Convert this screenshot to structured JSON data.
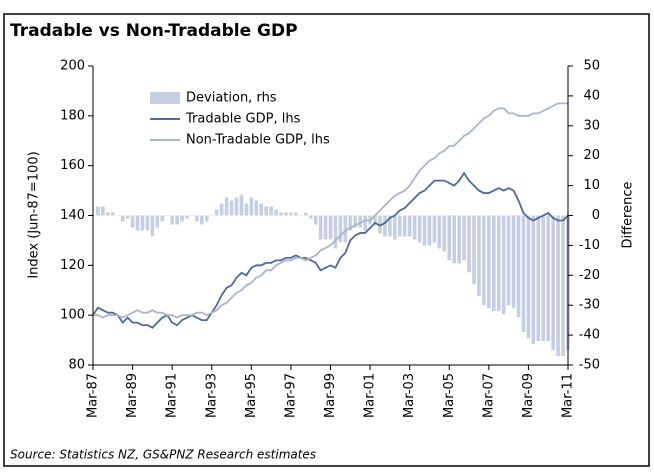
{
  "chart_data": {
    "type": "bar-line",
    "title": "Tradable vs Non-Tradable GDP",
    "ylabel": "Index (Jun-87=100)",
    "y2label": "Difference",
    "source": "Source: Statistics NZ, GS&PNZ Research estimates",
    "categories": [
      "Mar-87",
      null,
      null,
      null,
      null,
      null,
      null,
      null,
      "Mar-89",
      null,
      null,
      null,
      null,
      null,
      null,
      null,
      "Mar-91",
      null,
      null,
      null,
      null,
      null,
      null,
      null,
      "Mar-93",
      null,
      null,
      null,
      null,
      null,
      null,
      null,
      "Mar-95",
      null,
      null,
      null,
      null,
      null,
      null,
      null,
      "Mar-97",
      null,
      null,
      null,
      null,
      null,
      null,
      null,
      "Mar-99",
      null,
      null,
      null,
      null,
      null,
      null,
      null,
      "Mar-01",
      null,
      null,
      null,
      null,
      null,
      null,
      null,
      "Mar-03",
      null,
      null,
      null,
      null,
      null,
      null,
      null,
      "Mar-05",
      null,
      null,
      null,
      null,
      null,
      null,
      null,
      "Mar-07",
      null,
      null,
      null,
      null,
      null,
      null,
      null,
      "Mar-09",
      null,
      null,
      null,
      null,
      null,
      null,
      null,
      "Mar-11"
    ],
    "series": [
      {
        "name": "Deviation, rhs",
        "color": "#c6cee3",
        "axis": "y2",
        "kind": "bar",
        "values": [
          0,
          3,
          3,
          1,
          1,
          0,
          -2,
          -1,
          -4,
          -5,
          -5,
          -5,
          -7,
          -4,
          -2,
          0,
          -3,
          -3,
          -2,
          -1,
          0,
          -2,
          -3,
          -2,
          0,
          2,
          4,
          6,
          5,
          6,
          7,
          4,
          6,
          5,
          4,
          3,
          3,
          2,
          1,
          1,
          1,
          1,
          0,
          1,
          -1,
          -3,
          -8,
          -8,
          -8,
          -11,
          -9,
          -9,
          -5,
          -4,
          -4,
          -5,
          -3,
          -3,
          -6,
          -7,
          -7,
          -8,
          -7,
          -7,
          -7,
          -8,
          -9,
          -10,
          -10,
          -9,
          -11,
          -12,
          -15,
          -16,
          -16,
          -15,
          -19,
          -23,
          -27,
          -30,
          -31,
          -32,
          -32,
          -33,
          -30,
          -31,
          -34,
          -39,
          -41,
          -43,
          -42,
          -42,
          -42,
          -45,
          -47,
          -47,
          -45
        ]
      },
      {
        "name": "Tradable GDP, lhs",
        "color": "#50699b",
        "kind": "line",
        "values": [
          100,
          103,
          102,
          101,
          101,
          100,
          97,
          99,
          97,
          97,
          96,
          96,
          95,
          97,
          99,
          100,
          97,
          96,
          98,
          99,
          100,
          99,
          98,
          98,
          101,
          104,
          108,
          111,
          112,
          115,
          117,
          116,
          119,
          120,
          120,
          121,
          121,
          122,
          122,
          123,
          123,
          124,
          123,
          123,
          122,
          121,
          118,
          119,
          120,
          119,
          123,
          125,
          130,
          132,
          133,
          133,
          135,
          137,
          136,
          137,
          139,
          140,
          142,
          143,
          145,
          147,
          149,
          150,
          152,
          154,
          154,
          154,
          153,
          152,
          154,
          157,
          154,
          152,
          150,
          149,
          149,
          150,
          151,
          150,
          151,
          150,
          146,
          141,
          139,
          138,
          139,
          140,
          141,
          139,
          138,
          138,
          140
        ]
      },
      {
        "name": "Non-Tradable GDP, lhs",
        "color": "#a9b4cf",
        "kind": "line",
        "values": [
          100,
          100,
          99,
          100,
          100,
          100,
          99,
          100,
          101,
          102,
          101,
          101,
          102,
          101,
          101,
          100,
          100,
          99,
          100,
          100,
          100,
          101,
          101,
          100,
          101,
          102,
          104,
          105,
          107,
          109,
          110,
          112,
          113,
          115,
          116,
          118,
          118,
          120,
          121,
          122,
          122,
          123,
          123,
          122,
          123,
          124,
          126,
          127,
          128,
          130,
          132,
          134,
          135,
          136,
          137,
          138,
          138,
          140,
          142,
          144,
          146,
          148,
          149,
          150,
          152,
          155,
          158,
          160,
          162,
          163,
          165,
          166,
          168,
          168,
          170,
          172,
          173,
          175,
          177,
          179,
          180,
          182,
          183,
          183,
          181,
          181,
          180,
          180,
          180,
          181,
          181,
          182,
          183,
          184,
          185,
          185,
          185
        ]
      }
    ],
    "ylim": [
      80,
      200
    ],
    "yticks": [
      80,
      100,
      120,
      140,
      160,
      180,
      200
    ],
    "y2lim": [
      -50,
      50
    ],
    "y2ticks": [
      -50,
      -40,
      -30,
      -20,
      -10,
      0,
      10,
      20,
      30,
      40,
      50
    ],
    "legend": "upper left"
  }
}
